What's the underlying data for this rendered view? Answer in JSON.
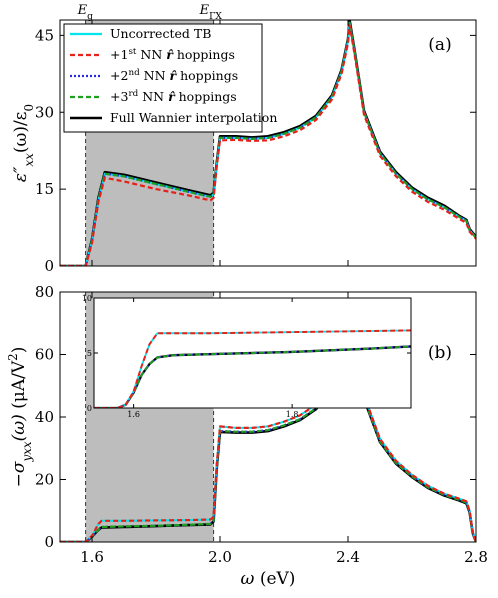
{
  "chart_data": [
    {
      "type": "line",
      "panel_label": "(a)",
      "ylabel": "ε″xx(ω)/ε0",
      "xlabel": "",
      "xlim": [
        1.5,
        2.8
      ],
      "ylim": [
        0,
        48
      ],
      "yticks": [
        "0",
        "15",
        "30",
        "45"
      ],
      "ytick_values": [
        0,
        15,
        30,
        45
      ],
      "xticks_labeled": false,
      "shaded_region": [
        1.58,
        1.98
      ],
      "vlines": [
        {
          "x": 1.58,
          "label": "Eg"
        },
        {
          "x": 1.98,
          "label": "EΓX"
        }
      ],
      "legend": {
        "placement": "top-left",
        "entries": [
          "Uncorrected TB",
          "+1st NN r̂ hoppings",
          "+2nd NN r̂ hoppings",
          "+3rd NN r̂ hoppings",
          "Full Wannier interpolation"
        ]
      },
      "series": [
        {
          "name": "Uncorrected TB",
          "color": "#00e5ee",
          "dash": "solid",
          "x": [
            1.5,
            1.58,
            1.6,
            1.62,
            1.64,
            1.7,
            1.8,
            1.9,
            1.97,
            1.98,
            1.99,
            2.0,
            2.05,
            2.1,
            2.15,
            2.2,
            2.25,
            2.3,
            2.35,
            2.38,
            2.4,
            2.405,
            2.42,
            2.45,
            2.5,
            2.55,
            2.6,
            2.65,
            2.7,
            2.75,
            2.77,
            2.78,
            2.8
          ],
          "y": [
            0,
            0,
            5,
            13,
            18,
            17.5,
            16,
            14.5,
            13.5,
            14,
            20,
            25,
            25,
            24.8,
            25,
            25.8,
            27,
            29,
            33,
            38,
            44,
            47.5,
            42,
            30,
            22,
            18,
            15,
            13,
            11.5,
            9.5,
            8.8,
            7,
            5.5
          ]
        },
        {
          "name": "+1st NN r̂ hoppings",
          "color": "#e8201a",
          "dash": "dashed",
          "x": [
            1.5,
            1.58,
            1.6,
            1.62,
            1.64,
            1.7,
            1.8,
            1.9,
            1.97,
            1.98,
            1.99,
            2.0,
            2.05,
            2.1,
            2.15,
            2.2,
            2.25,
            2.3,
            2.35,
            2.38,
            2.4,
            2.405,
            2.42,
            2.45,
            2.5,
            2.55,
            2.6,
            2.65,
            2.7,
            2.75,
            2.77,
            2.78,
            2.8
          ],
          "y": [
            0,
            0,
            4.5,
            12.5,
            17.2,
            16.5,
            15,
            13.8,
            12.8,
            13.3,
            19.5,
            24.5,
            24.6,
            24.4,
            24.5,
            25.3,
            26.5,
            28.5,
            32.5,
            37.5,
            43.5,
            47,
            41.5,
            29.5,
            21.5,
            17.5,
            14.5,
            12.5,
            11,
            9.1,
            8.4,
            6.7,
            5.3
          ]
        },
        {
          "name": "+2nd NN r̂ hoppings",
          "color": "#2929e0",
          "dash": "dashdot",
          "x": [
            1.5,
            1.58,
            1.6,
            1.62,
            1.64,
            1.7,
            1.8,
            1.9,
            1.97,
            1.98,
            1.99,
            2.0,
            2.05,
            2.1,
            2.15,
            2.2,
            2.25,
            2.3,
            2.35,
            2.38,
            2.4,
            2.405,
            2.42,
            2.45,
            2.5,
            2.55,
            2.6,
            2.65,
            2.7,
            2.75,
            2.77,
            2.78,
            2.8
          ],
          "y": [
            0,
            0,
            5,
            13,
            18,
            17.5,
            16,
            14.5,
            13.5,
            14,
            20,
            25,
            25,
            24.8,
            25,
            25.8,
            27,
            29,
            33,
            38,
            44,
            47.5,
            42,
            30,
            22,
            18,
            15,
            13,
            11.5,
            9.5,
            8.8,
            7,
            5.5
          ]
        },
        {
          "name": "+3rd NN r̂ hoppings",
          "color": "#1f9e1f",
          "dash": "dashed",
          "x": [
            1.5,
            1.58,
            1.6,
            1.62,
            1.64,
            1.7,
            1.8,
            1.9,
            1.97,
            1.98,
            1.99,
            2.0,
            2.05,
            2.1,
            2.15,
            2.2,
            2.25,
            2.3,
            2.35,
            2.38,
            2.4,
            2.405,
            2.42,
            2.45,
            2.5,
            2.55,
            2.6,
            2.65,
            2.7,
            2.75,
            2.77,
            2.78,
            2.8
          ],
          "y": [
            0,
            0,
            5,
            13,
            18,
            17.5,
            16,
            14.5,
            13.5,
            14,
            20,
            25,
            25,
            24.8,
            25,
            25.8,
            27,
            29,
            33,
            38,
            44,
            47.5,
            42,
            30,
            22,
            18,
            15,
            13,
            11.5,
            9.5,
            8.8,
            7,
            5.5
          ]
        },
        {
          "name": "Full Wannier interpolation",
          "color": "#000000",
          "dash": "solid",
          "x": [
            1.5,
            1.58,
            1.6,
            1.62,
            1.64,
            1.7,
            1.8,
            1.9,
            1.97,
            1.98,
            1.99,
            2.0,
            2.05,
            2.1,
            2.15,
            2.2,
            2.25,
            2.3,
            2.35,
            2.38,
            2.4,
            2.405,
            2.42,
            2.45,
            2.5,
            2.55,
            2.6,
            2.65,
            2.7,
            2.75,
            2.77,
            2.78,
            2.8
          ],
          "y": [
            0,
            0,
            5.2,
            13.3,
            18.3,
            17.8,
            16.3,
            14.8,
            13.8,
            14.3,
            20.3,
            25.3,
            25.3,
            25.1,
            25.3,
            26.1,
            27.3,
            29.3,
            33.3,
            38.3,
            44.3,
            48,
            42.3,
            30.3,
            22.3,
            18.3,
            15.3,
            13.3,
            11.8,
            9.7,
            9,
            7.2,
            5.7
          ]
        }
      ]
    },
    {
      "type": "line",
      "panel_label": "(b)",
      "ylabel": "−σyxx(ω) (μA/V²)",
      "xlabel": "ω (eV)",
      "xlim": [
        1.5,
        2.8
      ],
      "ylim": [
        0,
        80
      ],
      "yticks": [
        "0",
        "20",
        "40",
        "60",
        "80"
      ],
      "ytick_values": [
        0,
        20,
        40,
        60,
        80
      ],
      "xticks": [
        "1.6",
        "2.0",
        "2.4",
        "2.8"
      ],
      "xtick_values": [
        1.6,
        2.0,
        2.4,
        2.8
      ],
      "shaded_region": [
        1.58,
        1.98
      ],
      "vlines": [
        {
          "x": 1.58
        },
        {
          "x": 1.98
        }
      ],
      "series": [
        {
          "name": "Uncorrected TB",
          "color": "#00e5ee",
          "dash": "solid",
          "x": [
            1.5,
            1.58,
            1.6,
            1.62,
            1.63,
            1.7,
            1.8,
            1.9,
            1.97,
            1.98,
            1.99,
            2.0,
            2.05,
            2.1,
            2.15,
            2.2,
            2.25,
            2.3,
            2.35,
            2.38,
            2.4,
            2.41,
            2.42,
            2.45,
            2.5,
            2.55,
            2.6,
            2.65,
            2.7,
            2.75,
            2.77,
            2.78,
            2.79,
            2.8
          ],
          "y": [
            0,
            0,
            2,
            5.8,
            6.8,
            6.8,
            6.9,
            7,
            7.2,
            8,
            25,
            37,
            36.5,
            36.5,
            37,
            38.5,
            40.5,
            44,
            51,
            60,
            70,
            74,
            68,
            47,
            33,
            26,
            21.5,
            18,
            15.5,
            13.8,
            13,
            10,
            3,
            0
          ]
        },
        {
          "name": "+1st NN r̂ hoppings",
          "color": "#e8201a",
          "dash": "dashed",
          "x": [
            1.5,
            1.58,
            1.6,
            1.62,
            1.63,
            1.7,
            1.8,
            1.9,
            1.97,
            1.98,
            1.99,
            2.0,
            2.05,
            2.1,
            2.15,
            2.2,
            2.25,
            2.3,
            2.35,
            2.38,
            2.4,
            2.41,
            2.42,
            2.45,
            2.5,
            2.55,
            2.6,
            2.65,
            2.7,
            2.75,
            2.77,
            2.78,
            2.79,
            2.8
          ],
          "y": [
            0,
            0,
            2,
            5.8,
            6.8,
            6.8,
            6.9,
            7,
            7.2,
            8,
            25,
            37,
            36.5,
            36.5,
            37,
            38.5,
            40.5,
            44,
            51,
            60,
            70,
            74,
            68,
            47,
            33,
            26,
            21.5,
            18,
            15.5,
            13.8,
            13,
            10,
            3,
            0
          ]
        },
        {
          "name": "+2nd NN r̂ hoppings",
          "color": "#2929e0",
          "dash": "dashdot",
          "x": [
            1.5,
            1.58,
            1.6,
            1.62,
            1.63,
            1.7,
            1.8,
            1.9,
            1.97,
            1.98,
            1.99,
            2.0,
            2.05,
            2.1,
            2.15,
            2.2,
            2.25,
            2.3,
            2.35,
            2.38,
            2.4,
            2.41,
            2.42,
            2.45,
            2.5,
            2.55,
            2.6,
            2.65,
            2.7,
            2.75,
            2.77,
            2.78,
            2.79,
            2.8
          ],
          "y": [
            0,
            0,
            1.8,
            4,
            4.8,
            5,
            5.2,
            5.5,
            5.8,
            6.8,
            24,
            35.5,
            35.3,
            35.3,
            35.8,
            37.3,
            39.3,
            42.8,
            49.8,
            58.8,
            68.8,
            72.8,
            66.8,
            46,
            32.2,
            25.3,
            21,
            17.5,
            15.1,
            13.4,
            12.6,
            9.7,
            2.9,
            0
          ]
        },
        {
          "name": "+3rd NN r̂ hoppings",
          "color": "#1f9e1f",
          "dash": "dashed",
          "x": [
            1.5,
            1.58,
            1.6,
            1.62,
            1.63,
            1.7,
            1.8,
            1.9,
            1.97,
            1.98,
            1.99,
            2.0,
            2.05,
            2.1,
            2.15,
            2.2,
            2.25,
            2.3,
            2.35,
            2.38,
            2.4,
            2.41,
            2.42,
            2.45,
            2.5,
            2.55,
            2.6,
            2.65,
            2.7,
            2.75,
            2.77,
            2.78,
            2.79,
            2.8
          ],
          "y": [
            0,
            0,
            1.8,
            4,
            4.8,
            5,
            5.2,
            5.5,
            5.8,
            6.8,
            24,
            35.5,
            35.3,
            35.3,
            35.8,
            37.3,
            39.3,
            42.8,
            49.8,
            58.8,
            68.8,
            72.8,
            66.8,
            46,
            32.2,
            25.3,
            21,
            17.5,
            15.1,
            13.4,
            12.6,
            9.7,
            2.9,
            0
          ]
        },
        {
          "name": "Full Wannier interpolation",
          "color": "#000000",
          "dash": "solid",
          "x": [
            1.5,
            1.58,
            1.6,
            1.62,
            1.63,
            1.7,
            1.8,
            1.9,
            1.97,
            1.98,
            1.99,
            2.0,
            2.05,
            2.1,
            2.15,
            2.2,
            2.25,
            2.3,
            2.35,
            2.38,
            2.4,
            2.41,
            2.42,
            2.45,
            2.5,
            2.55,
            2.6,
            2.65,
            2.7,
            2.75,
            2.77,
            2.78,
            2.79,
            2.8
          ],
          "y": [
            0,
            0,
            1.7,
            3.9,
            4.6,
            4.8,
            5.1,
            5.4,
            5.6,
            6.6,
            23.8,
            35.2,
            35,
            35,
            35.5,
            37,
            39,
            42.5,
            49.5,
            58.5,
            68.5,
            72.5,
            66.5,
            45.8,
            32,
            25.1,
            20.8,
            17.3,
            14.9,
            13.2,
            12.4,
            9.5,
            2.8,
            0
          ]
        }
      ],
      "inset": {
        "xlim": [
          1.55,
          1.95
        ],
        "ylim": [
          0,
          10
        ],
        "xticks": [
          "1.6",
          "1.8"
        ],
        "xtick_values": [
          1.6,
          1.8
        ],
        "yticks": [
          "0",
          "5",
          "10"
        ],
        "ytick_values": [
          0,
          5,
          10
        ],
        "series": [
          {
            "name": "Uncorrected TB",
            "color": "#00e5ee",
            "dash": "solid",
            "x": [
              1.55,
              1.58,
              1.59,
              1.6,
              1.61,
              1.62,
              1.63,
              1.65,
              1.7,
              1.8,
              1.9,
              1.95
            ],
            "y": [
              0,
              0,
              0.3,
              1.5,
              3.8,
              5.8,
              6.8,
              6.8,
              6.8,
              6.9,
              7,
              7.05
            ]
          },
          {
            "name": "+1st NN r̂ hoppings",
            "color": "#e8201a",
            "dash": "dashed",
            "x": [
              1.55,
              1.58,
              1.59,
              1.6,
              1.61,
              1.62,
              1.63,
              1.65,
              1.7,
              1.8,
              1.9,
              1.95
            ],
            "y": [
              0,
              0,
              0.3,
              1.5,
              3.8,
              5.8,
              6.8,
              6.8,
              6.8,
              6.9,
              7,
              7.05
            ]
          },
          {
            "name": "+2nd NN r̂ hoppings",
            "color": "#2929e0",
            "dash": "dashdot",
            "x": [
              1.55,
              1.58,
              1.59,
              1.6,
              1.61,
              1.62,
              1.63,
              1.65,
              1.7,
              1.8,
              1.9,
              1.95
            ],
            "y": [
              0,
              0,
              0.3,
              1.4,
              3,
              4,
              4.6,
              4.8,
              4.9,
              5.1,
              5.4,
              5.6
            ]
          },
          {
            "name": "+3rd NN r̂ hoppings",
            "color": "#1f9e1f",
            "dash": "dashed",
            "x": [
              1.55,
              1.58,
              1.59,
              1.6,
              1.61,
              1.62,
              1.63,
              1.65,
              1.7,
              1.8,
              1.9,
              1.95
            ],
            "y": [
              0,
              0,
              0.3,
              1.4,
              3,
              4,
              4.6,
              4.8,
              4.9,
              5.1,
              5.4,
              5.6
            ]
          },
          {
            "name": "Full Wannier interpolation",
            "color": "#000000",
            "dash": "solid",
            "x": [
              1.55,
              1.58,
              1.59,
              1.6,
              1.61,
              1.62,
              1.63,
              1.65,
              1.7,
              1.8,
              1.9,
              1.95
            ],
            "y": [
              0,
              0,
              0.3,
              1.4,
              3,
              4,
              4.6,
              4.8,
              4.9,
              5.1,
              5.4,
              5.6
            ]
          }
        ]
      }
    }
  ]
}
